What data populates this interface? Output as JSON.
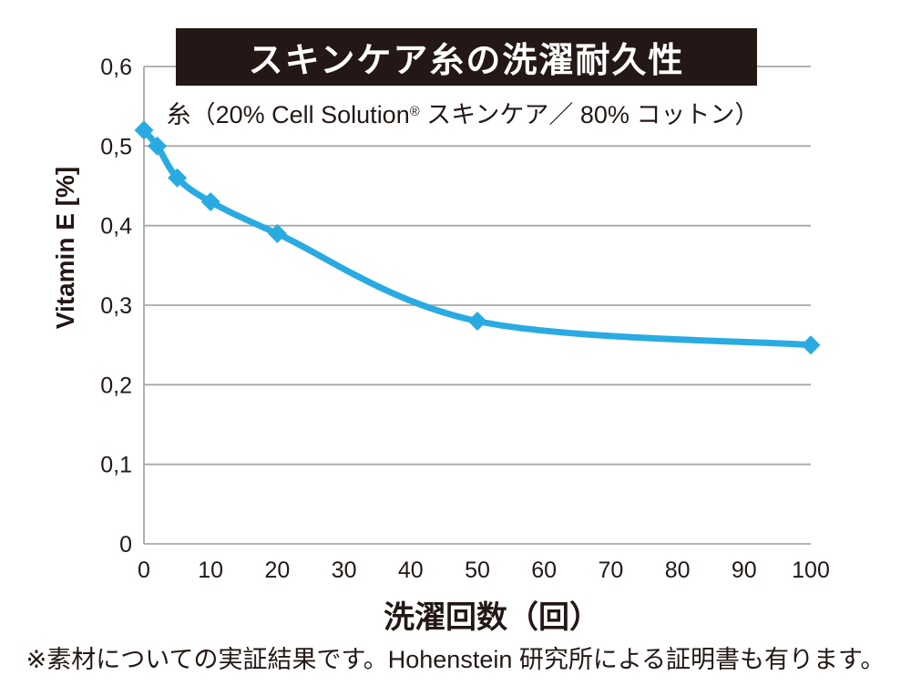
{
  "header": {
    "title": "スキンケア糸の洗濯耐久性",
    "subtitle_pre": "糸（20% Cell Solution",
    "subtitle_reg": "®",
    "subtitle_post": " スキンケア／ 80% コットン）"
  },
  "chart_data": {
    "type": "line",
    "title": "スキンケア糸の洗濯耐久性",
    "subtitle": "糸（20% Cell Solution® スキンケア／ 80% コットン）",
    "xlabel": "洗濯回数（回）",
    "ylabel": "Vitamin E [%]",
    "xlim": [
      0,
      100
    ],
    "ylim": [
      0,
      0.6
    ],
    "x_ticks": [
      0,
      10,
      20,
      30,
      40,
      50,
      60,
      70,
      80,
      90,
      100
    ],
    "x_tick_labels": [
      "0",
      "10",
      "20",
      "30",
      "40",
      "50",
      "60",
      "70",
      "80",
      "90",
      "100"
    ],
    "y_ticks": [
      0,
      0.1,
      0.2,
      0.3,
      0.4,
      0.5,
      0.6
    ],
    "y_tick_labels": [
      "0",
      "0,1",
      "0,2",
      "0,3",
      "0,4",
      "0,5",
      "0,6"
    ],
    "grid": "horizontal",
    "legend": "none",
    "series": [
      {
        "name": "Vitamin E content",
        "x": [
          0,
          2,
          5,
          10,
          20,
          50,
          100
        ],
        "y": [
          0.52,
          0.5,
          0.46,
          0.43,
          0.39,
          0.28,
          0.25
        ],
        "color": "#29abe2",
        "marker": "diamond"
      }
    ]
  },
  "footnote": "※素材についての実証結果です。Hohenstein 研究所による証明書も有ります。",
  "colors": {
    "accent": "#29abe2",
    "banner_bg": "#231815",
    "grid": "#a8a8a8",
    "text": "#231815",
    "title_text": "#ffffff"
  }
}
